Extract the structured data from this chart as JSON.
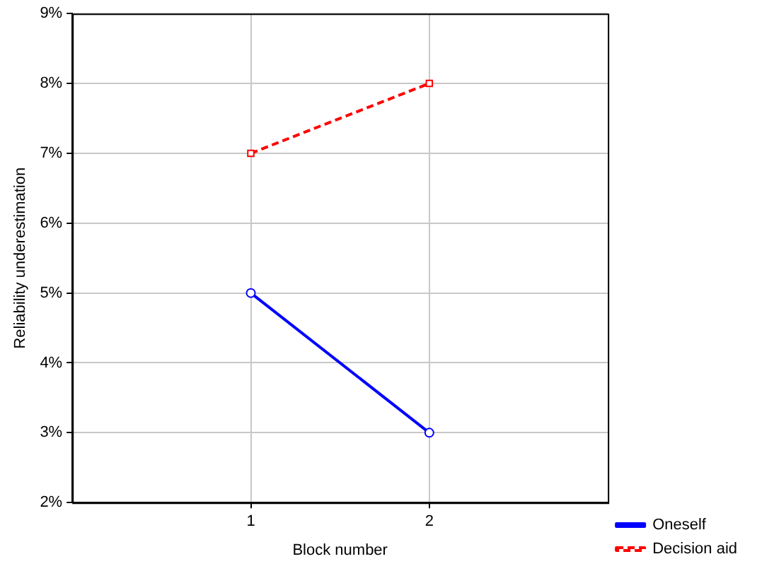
{
  "chart_data": {
    "type": "line",
    "xlabel": "Block number",
    "ylabel": "Reliability underestimation",
    "x": [
      1,
      2
    ],
    "series": [
      {
        "name": "Oneself",
        "color": "#0000ff",
        "values": [
          5,
          3
        ],
        "marker": "circle",
        "line_style": "solid"
      },
      {
        "name": "Decision aid",
        "color": "#ff0000",
        "values": [
          7,
          8
        ],
        "marker": "square",
        "line_style": "dashed"
      }
    ],
    "xlim": [
      0,
      3
    ],
    "xticks": [
      1,
      2
    ],
    "ylim": [
      2,
      9
    ],
    "yticks": [
      {
        "value": 2,
        "label": "2%"
      },
      {
        "value": 3,
        "label": "3%"
      },
      {
        "value": 4,
        "label": "4%"
      },
      {
        "value": 5,
        "label": "5%"
      },
      {
        "value": 6,
        "label": "6%"
      },
      {
        "value": 7,
        "label": "7%"
      },
      {
        "value": 8,
        "label": "8%"
      },
      {
        "value": 9,
        "label": "9%"
      }
    ],
    "grid": true,
    "legend": "bottom right"
  }
}
